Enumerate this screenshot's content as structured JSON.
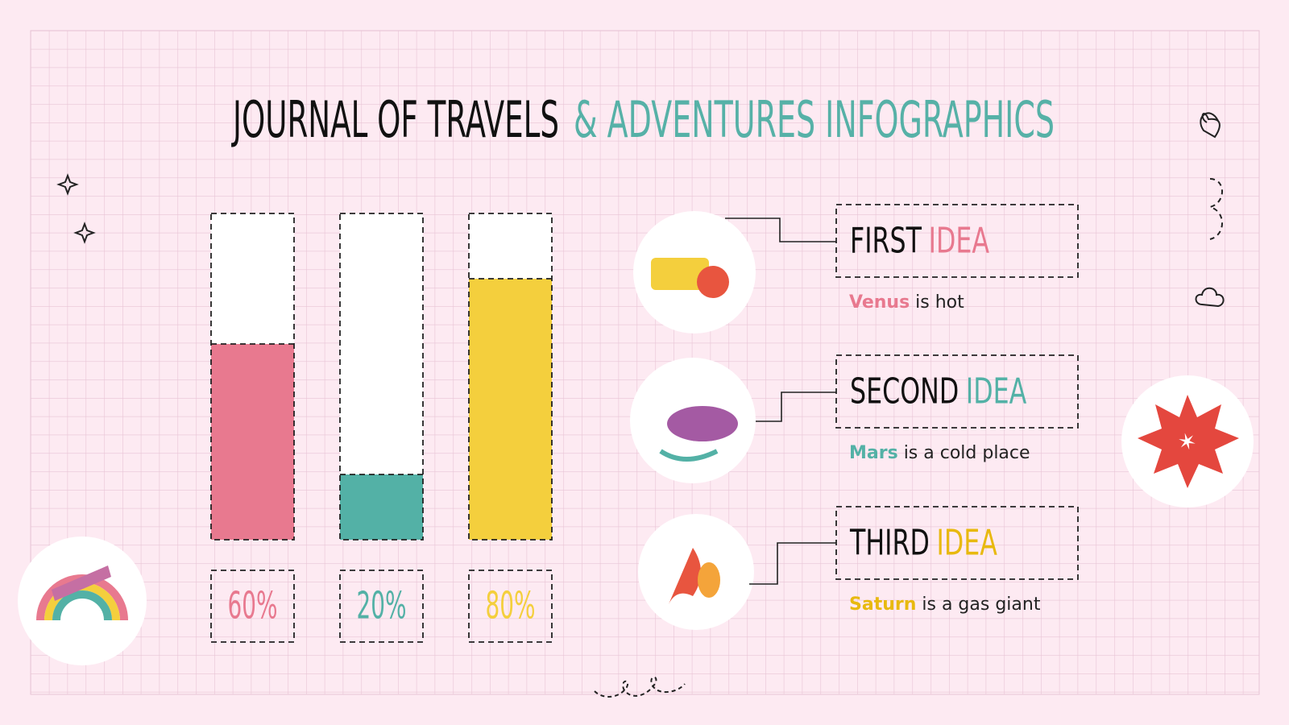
{
  "title": {
    "main": "JOURNAL OF TRAVELS",
    "accent": "& ADVENTURES INFOGRAPHICS",
    "accent_color": "#56b1a7"
  },
  "chart_data": {
    "type": "bar",
    "categories": [
      null,
      null,
      null
    ],
    "values": [
      60,
      20,
      80
    ],
    "value_labels": [
      "60%",
      "20%",
      "80%"
    ],
    "colors": [
      "#e8798f",
      "#53b1a6",
      "#f4cf3d"
    ],
    "ylim": [
      0,
      100
    ]
  },
  "ideas": [
    {
      "heading": "FIRST",
      "accent": "IDEA",
      "color": "#e8798f",
      "name": "Venus",
      "text": "is hot"
    },
    {
      "heading": "SECOND",
      "accent": "IDEA",
      "color": "#53b1a6",
      "name": "Mars",
      "text": "is a cold place"
    },
    {
      "heading": "THIRD",
      "accent": "IDEA",
      "color": "#e8b90f",
      "name": "Saturn",
      "text": "is a gas giant"
    }
  ]
}
